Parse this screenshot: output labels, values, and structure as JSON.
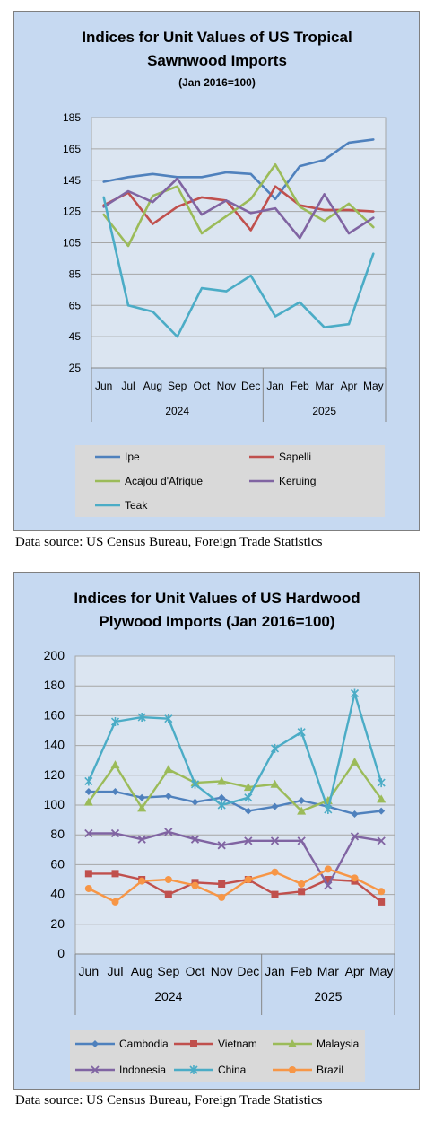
{
  "chart_data": [
    {
      "type": "line",
      "title_lines": [
        "Indices for Unit Values of US Tropical",
        "Sawnwood Imports"
      ],
      "subtitle": "(Jan 2016=100)",
      "categories": [
        "Jun",
        "Jul",
        "Aug",
        "Sep",
        "Oct",
        "Nov",
        "Dec",
        "Jan",
        "Feb",
        "Mar",
        "Apr",
        "May"
      ],
      "year_groups": [
        {
          "label": "2024",
          "count": 7
        },
        {
          "label": "2025",
          "count": 5
        }
      ],
      "yticks": [
        "25",
        "45",
        "65",
        "85",
        "105",
        "125",
        "145",
        "165",
        "185"
      ],
      "ylim": [
        25,
        185
      ],
      "grid": true,
      "legend_position": "bottom",
      "series": [
        {
          "name": "Ipe",
          "color": "#4f81bd",
          "values": [
            144,
            147,
            149,
            147,
            147,
            150,
            149,
            133,
            154,
            158,
            169,
            171
          ]
        },
        {
          "name": "Sapelli",
          "color": "#c0504d",
          "values": [
            129,
            137,
            117,
            128,
            134,
            132,
            113,
            141,
            129,
            126,
            126,
            125
          ]
        },
        {
          "name": "Acajou d'Afrique",
          "color": "#9bbb59",
          "values": [
            123,
            103,
            135,
            141,
            111,
            122,
            133,
            155,
            128,
            119,
            130,
            115
          ]
        },
        {
          "name": "Keruing",
          "color": "#8064a2",
          "values": [
            128,
            138,
            131,
            146,
            123,
            132,
            124,
            127,
            108,
            136,
            111,
            121
          ]
        },
        {
          "name": "Teak",
          "color": "#4bacc6",
          "values": [
            134,
            65,
            61,
            45,
            76,
            74,
            84,
            58,
            67,
            51,
            53,
            98
          ]
        }
      ]
    },
    {
      "type": "line",
      "title_lines": [
        "Indices for Unit Values of US Hardwood",
        "Plywood Imports (Jan 2016=100)"
      ],
      "categories": [
        "Jun",
        "Jul",
        "Aug",
        "Sep",
        "Oct",
        "Nov",
        "Dec",
        "Jan",
        "Feb",
        "Mar",
        "Apr",
        "May"
      ],
      "year_groups": [
        {
          "label": "2024",
          "count": 7
        },
        {
          "label": "2025",
          "count": 5
        }
      ],
      "yticks": [
        "0",
        "20",
        "40",
        "60",
        "80",
        "100",
        "120",
        "140",
        "160",
        "180",
        "200"
      ],
      "ylim": [
        0,
        200
      ],
      "grid": true,
      "legend_position": "bottom",
      "series": [
        {
          "name": "Cambodia",
          "color": "#4f81bd",
          "marker": "diamond",
          "values": [
            109,
            109,
            105,
            106,
            102,
            105,
            96,
            99,
            103,
            99,
            94,
            96
          ]
        },
        {
          "name": "Vietnam",
          "color": "#c0504d",
          "marker": "square",
          "values": [
            54,
            54,
            50,
            40,
            48,
            47,
            50,
            40,
            42,
            50,
            49,
            35
          ]
        },
        {
          "name": "Malaysia",
          "color": "#9bbb59",
          "marker": "triangle",
          "values": [
            102,
            127,
            98,
            124,
            115,
            116,
            112,
            114,
            96,
            103,
            129,
            104
          ]
        },
        {
          "name": "Indonesia",
          "color": "#8064a2",
          "marker": "x",
          "values": [
            81,
            81,
            77,
            82,
            77,
            73,
            76,
            76,
            76,
            46,
            79,
            76
          ]
        },
        {
          "name": "China",
          "color": "#4bacc6",
          "marker": "star",
          "values": [
            116,
            156,
            159,
            158,
            114,
            100,
            105,
            138,
            149,
            97,
            175,
            115
          ]
        },
        {
          "name": "Brazil",
          "color": "#f79646",
          "marker": "circle",
          "values": [
            44,
            35,
            49,
            50,
            46,
            38,
            50,
            55,
            47,
            57,
            51,
            42
          ]
        }
      ]
    }
  ],
  "sources": [
    "Data source: US Census Bureau, Foreign Trade Statistics",
    "Data source: US Census Bureau, Foreign Trade Statistics"
  ]
}
